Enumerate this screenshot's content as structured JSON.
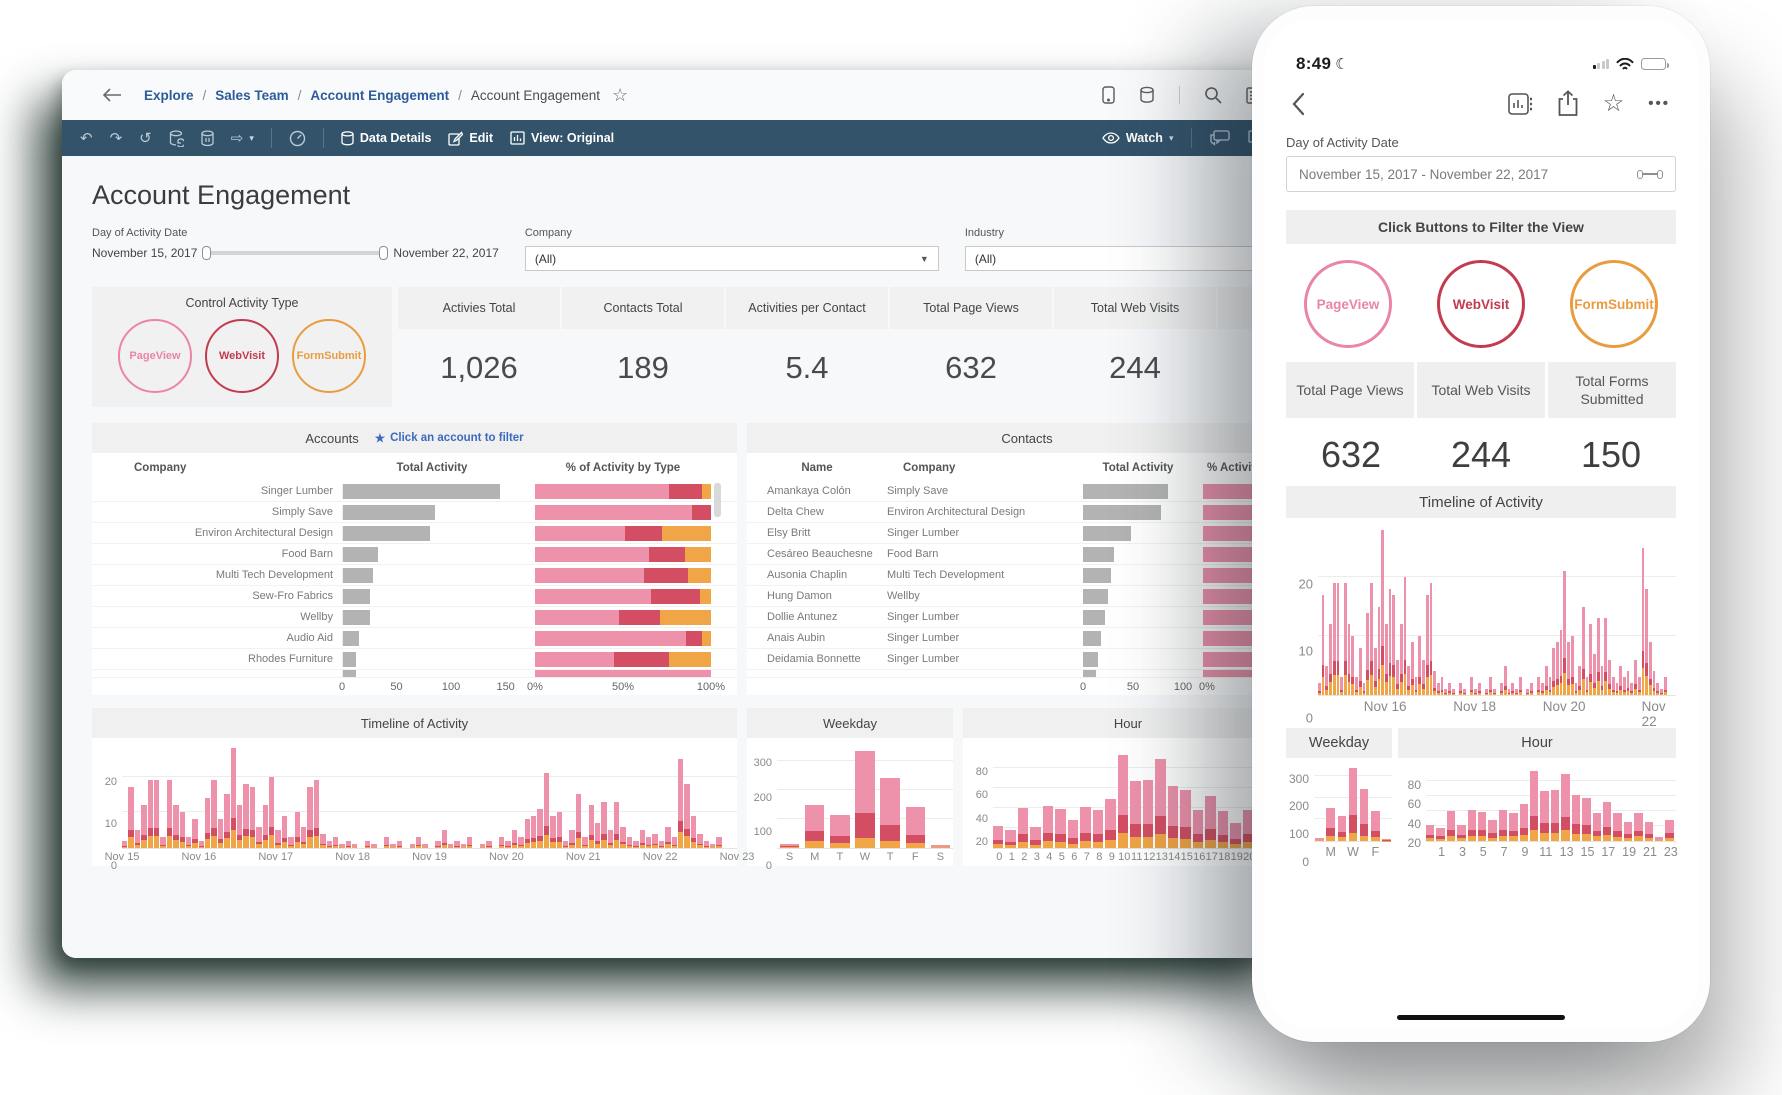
{
  "colors": {
    "pink": "#ee92ac",
    "red": "#d44e63",
    "orange": "#f0a546",
    "graybar": "#b3b3b3",
    "pink_border": "#ea84aa",
    "crimson": "#c23b4f",
    "orange_btn": "#e99c3f"
  },
  "desktop": {
    "breadcrumb": {
      "links": [
        "Explore",
        "Sales Team",
        "Account Engagement"
      ],
      "current": "Account Engagement"
    },
    "toolbar": {
      "data_details": "Data Details",
      "edit": "Edit",
      "view": "View: Original",
      "watch": "Watch"
    },
    "title": "Account Engagement",
    "filters": {
      "date": {
        "label": "Day of Activity Date",
        "start": "November 15, 2017",
        "end": "November 22, 2017"
      },
      "company": {
        "label": "Company",
        "value": "(All)"
      },
      "industry": {
        "label": "Industry",
        "value": "(All)"
      }
    },
    "control": {
      "title": "Control Activity Type",
      "buttons": [
        {
          "label": "PageView",
          "color": "#ea84aa"
        },
        {
          "label": "WebVisit",
          "color": "#c23b4f"
        },
        {
          "label": "FormSubmit",
          "color": "#e99c3f"
        }
      ]
    },
    "kpis": [
      {
        "label": "Activies Total",
        "value": "1,026"
      },
      {
        "label": "Contacts Total",
        "value": "189"
      },
      {
        "label": "Activities per Contact",
        "value": "5.4"
      },
      {
        "label": "Total Page Views",
        "value": "632"
      },
      {
        "label": "Total Web Visits",
        "value": "244"
      }
    ],
    "accounts": {
      "title": "Accounts",
      "hint": "Click an account to filter",
      "columns": [
        "Company",
        "Total Activity",
        "% of Activity by Type"
      ],
      "axis_total": [
        "0",
        "50",
        "100",
        "150"
      ],
      "axis_pct": [
        "0%",
        "50%",
        "100%"
      ]
    },
    "contacts": {
      "title": "Contacts",
      "columns": [
        "Name",
        "Company",
        "Total Activity",
        "% Activity by Type"
      ],
      "axis_total": [
        "0",
        "50",
        "100"
      ],
      "axis_pct_zero": "0%"
    },
    "timeline_title": "Timeline of Activity",
    "weekday_title": "Weekday",
    "hour_title": "Hour"
  },
  "phone": {
    "time": "8:49",
    "date_filter": {
      "label": "Day of Activity Date",
      "value": "November 15, 2017 - November 22, 2017"
    },
    "filter_header": "Click Buttons to Filter the View",
    "buttons": [
      {
        "label": "PageView",
        "color": "#ea84aa"
      },
      {
        "label": "WebVisit",
        "color": "#c23b4f"
      },
      {
        "label": "FormSubmit",
        "color": "#e99c3f"
      }
    ],
    "kpis": [
      {
        "label": "Total Page Views",
        "value": "632"
      },
      {
        "label": "Total Web Visits",
        "value": "244"
      },
      {
        "label": "Total Forms Submitted",
        "value": "150"
      }
    ],
    "timeline_title": "Timeline of Activity",
    "weekday_title": "Weekday",
    "hour_title": "Hour"
  },
  "chart_data": [
    {
      "id": "timeline",
      "type": "bar",
      "title": "Timeline of Activity",
      "ylim": [
        0,
        28
      ],
      "yticks": [
        0,
        10,
        20
      ],
      "desktop_xticks": [
        "Nov 15",
        "Nov 16",
        "Nov 17",
        "Nov 18",
        "Nov 19",
        "Nov 20",
        "Nov 21",
        "Nov 22",
        "Nov 23"
      ],
      "phone_xticks": [
        "Nov 16",
        "Nov 18",
        "Nov 20",
        "Nov 22"
      ],
      "values": [
        2,
        17,
        5,
        12,
        19,
        19,
        3,
        19,
        12,
        10,
        3,
        8,
        2,
        14,
        19,
        8,
        15,
        28,
        12,
        18,
        17,
        6,
        12,
        20,
        5,
        9,
        3,
        10,
        6,
        17,
        19,
        4,
        2,
        3,
        1,
        2,
        1,
        0,
        2,
        1,
        0,
        3,
        1,
        2,
        0,
        1,
        3,
        1,
        0,
        2,
        5,
        1,
        2,
        1,
        3,
        0,
        1,
        2,
        0,
        3,
        2,
        5,
        3,
        8,
        9,
        11,
        21,
        9,
        10,
        2,
        5,
        15,
        3,
        12,
        7,
        13,
        5,
        13,
        6,
        3,
        2,
        5,
        3,
        4,
        2,
        6,
        3,
        25,
        18,
        9,
        4,
        2,
        1,
        3,
        0,
        0
      ]
    },
    {
      "id": "weekday",
      "type": "stacked-bar",
      "title": "Weekday",
      "categories": [
        "S",
        "M",
        "T",
        "W",
        "T",
        "F",
        "S"
      ],
      "ylim": [
        0,
        345
      ],
      "yticks": [
        0,
        100,
        200,
        300
      ],
      "series": [
        {
          "name": "PageView",
          "values": [
            8,
            90,
            72,
            215,
            160,
            95,
            6
          ]
        },
        {
          "name": "WebVisit",
          "values": [
            4,
            35,
            25,
            85,
            55,
            28,
            2
          ]
        },
        {
          "name": "FormSubmit",
          "values": [
            3,
            25,
            18,
            35,
            25,
            17,
            2
          ]
        }
      ]
    },
    {
      "id": "hour",
      "type": "stacked-bar",
      "title": "Hour",
      "categories": [
        "0",
        "1",
        "2",
        "3",
        "4",
        "5",
        "6",
        "7",
        "8",
        "9",
        "10",
        "11",
        "12",
        "13",
        "14",
        "15",
        "16",
        "17",
        "18",
        "19",
        "20",
        "21",
        "22",
        "23"
      ],
      "ylim": [
        0,
        100
      ],
      "yticks": [
        20,
        40,
        60,
        80
      ],
      "totals": [
        22,
        18,
        40,
        21,
        42,
        39,
        28,
        41,
        38,
        49,
        93,
        67,
        68,
        89,
        62,
        58,
        38,
        52,
        37,
        25,
        38,
        26,
        5,
        28
      ]
    },
    {
      "id": "accounts",
      "type": "table",
      "scale_max": 165,
      "rows": [
        {
          "company": "Singer Lumber",
          "total": 145,
          "pct": [
            76,
            19,
            5
          ]
        },
        {
          "company": "Simply Save",
          "total": 85,
          "pct": [
            89,
            11,
            0
          ]
        },
        {
          "company": "Environ Architectural Design",
          "total": 80,
          "pct": [
            51,
            21,
            28
          ]
        },
        {
          "company": "Food Barn",
          "total": 32,
          "pct": [
            65,
            20,
            15
          ]
        },
        {
          "company": "Multi Tech Development",
          "total": 28,
          "pct": [
            62,
            25,
            13
          ]
        },
        {
          "company": "Sew-Fro Fabrics",
          "total": 25,
          "pct": [
            66,
            28,
            6
          ]
        },
        {
          "company": "Wellby",
          "total": 25,
          "pct": [
            48,
            23,
            29
          ]
        },
        {
          "company": "Audio Aid",
          "total": 15,
          "pct": [
            86,
            9,
            5
          ]
        },
        {
          "company": "Rhodes Furniture",
          "total": 12,
          "pct": [
            45,
            31,
            24
          ]
        }
      ]
    },
    {
      "id": "contacts",
      "type": "table",
      "scale_max": 110,
      "rows": [
        {
          "name": "Amankaya Colón",
          "company": "Simply Save",
          "total": 85
        },
        {
          "name": "Delta Chew",
          "company": "Environ Architectural Design",
          "total": 78
        },
        {
          "name": "Elsy Britt",
          "company": "Singer Lumber",
          "total": 48
        },
        {
          "name": "Cesáreo Beauchesne",
          "company": "Food Barn",
          "total": 31
        },
        {
          "name": "Ausonia Chaplin",
          "company": "Multi Tech Development",
          "total": 28
        },
        {
          "name": "Hung Damon",
          "company": "Wellby",
          "total": 25
        },
        {
          "name": "Dollie Antunez",
          "company": "Singer Lumber",
          "total": 22
        },
        {
          "name": "Anais Aubin",
          "company": "Singer Lumber",
          "total": 18
        },
        {
          "name": "Deidamia Bonnette",
          "company": "Singer Lumber",
          "total": 15
        }
      ]
    }
  ]
}
